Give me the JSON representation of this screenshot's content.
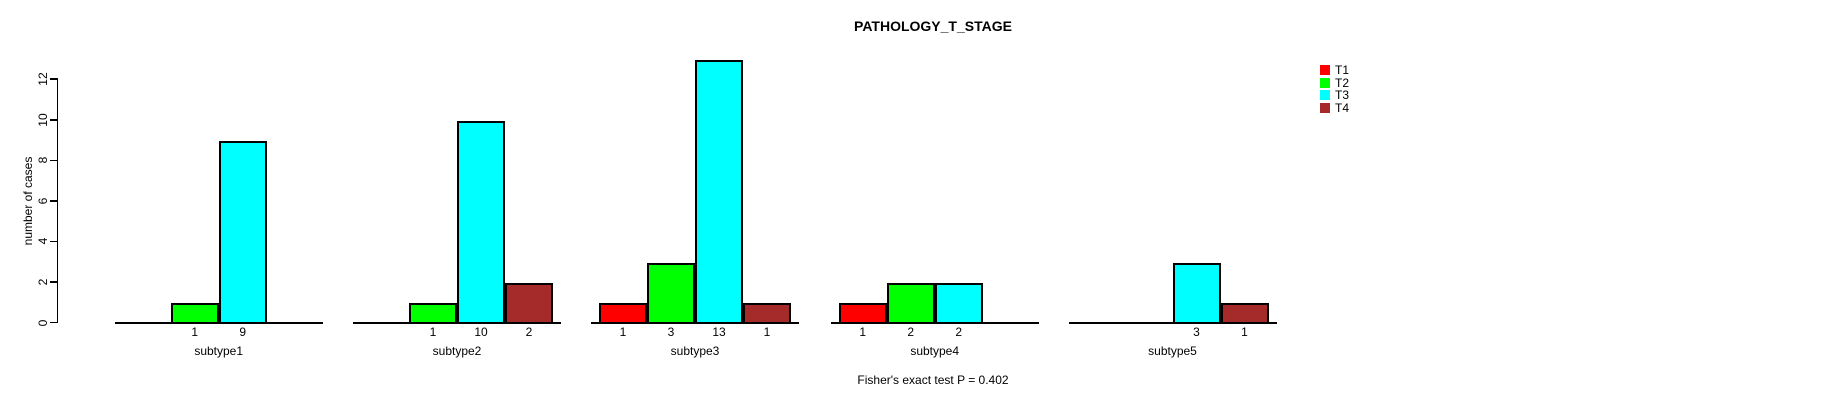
{
  "chart_data": {
    "type": "bar",
    "title": "PATHOLOGY_T_STAGE",
    "ylabel": "number of cases",
    "xlabel": "",
    "ylim": [
      0,
      13
    ],
    "yticks": [
      0,
      2,
      4,
      6,
      8,
      10,
      12
    ],
    "categories": [
      "subtype1",
      "subtype2",
      "subtype3",
      "subtype4",
      "subtype5"
    ],
    "series": [
      {
        "name": "T1",
        "color": "#FF0000",
        "values": [
          0,
          0,
          1,
          1,
          0
        ]
      },
      {
        "name": "T2",
        "color": "#00FF00",
        "values": [
          1,
          1,
          3,
          2,
          0
        ]
      },
      {
        "name": "T3",
        "color": "#00FFFF",
        "values": [
          9,
          10,
          13,
          2,
          3
        ]
      },
      {
        "name": "T4",
        "color": "#A52A2A",
        "values": [
          0,
          2,
          1,
          0,
          1
        ]
      }
    ],
    "bar_value_labels": {
      "subtype1": [
        "1",
        "9"
      ],
      "subtype2": [
        "1",
        "10",
        "2"
      ],
      "subtype3": [
        "1",
        "3",
        "13",
        "1"
      ],
      "subtype4": [
        "1",
        "2",
        "2"
      ],
      "subtype5": [
        "3",
        "1"
      ]
    },
    "legend_position": "right",
    "grid": false,
    "footnote": "Fisher's exact test P = 0.402"
  }
}
